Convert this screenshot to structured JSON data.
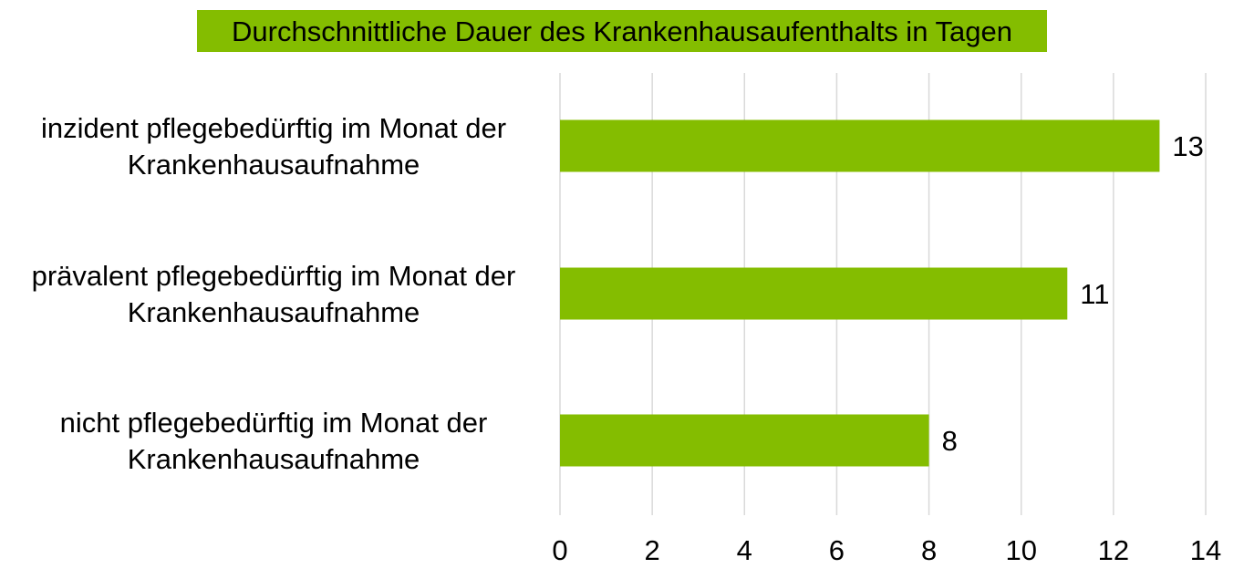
{
  "chart_data": {
    "type": "bar",
    "orientation": "horizontal",
    "title": "Durchschnittliche Dauer des Krankenhausaufenthalts in Tagen",
    "title_background": "#84bd00",
    "bar_color": "#84bd00",
    "grid": true,
    "grid_color": "#d9d9d9",
    "legend": "none",
    "categories": [
      [
        "inzident pflegebedürftig im Monat der",
        "Krankenhausaufnahme"
      ],
      [
        "prävalent pflegebedürftig im Monat der",
        "Krankenhausaufnahme"
      ],
      [
        "nicht pflegebedürftig im Monat der",
        "Krankenhausaufnahme"
      ]
    ],
    "values": [
      13,
      11,
      8
    ],
    "data_labels": [
      "13",
      "11",
      "8"
    ],
    "xlim": [
      0,
      14
    ],
    "x_ticks": [
      0,
      2,
      4,
      6,
      8,
      10,
      12,
      14
    ],
    "x_tick_labels": [
      "0",
      "2",
      "4",
      "6",
      "8",
      "10",
      "12",
      "14"
    ],
    "xlabel": "",
    "ylabel": ""
  }
}
